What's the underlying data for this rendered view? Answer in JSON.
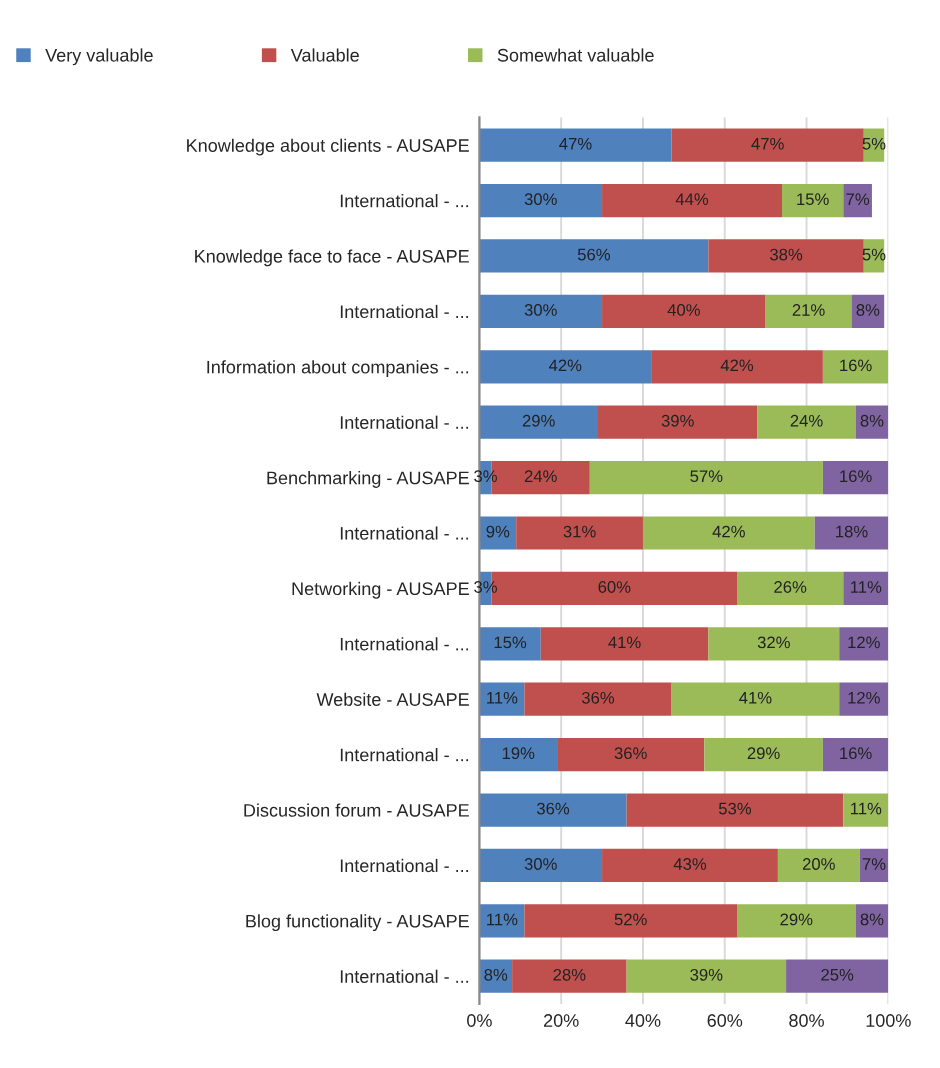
{
  "chart_data": {
    "type": "bar",
    "orientation": "horizontal",
    "stacked": true,
    "legend": "top",
    "grid": "x",
    "categories": [
      "Knowledge about clients - AUSAPE",
      "International - ...",
      "Knowledge face to face - AUSAPE",
      "International - ...",
      "Information about companies - ...",
      "International - ...",
      "Benchmarking - AUSAPE",
      "International - ...",
      "Networking - AUSAPE",
      "International - ...",
      "Website - AUSAPE",
      "International - ...",
      "Discussion forum - AUSAPE",
      "International - ...",
      "Blog functionality - AUSAPE",
      "International - ..."
    ],
    "series": [
      {
        "name": "Very valuable",
        "color": "#4f81bd",
        "values": [
          47,
          30,
          56,
          30,
          42,
          29,
          3,
          9,
          3,
          15,
          11,
          19,
          36,
          30,
          11,
          8
        ],
        "value_labels": [
          "47%",
          "30%",
          "56%",
          "30%",
          "42%",
          "29%",
          "3%",
          "9%",
          "3%",
          "15%",
          "11%",
          "19%",
          "36%",
          "30%",
          "11%",
          "8%"
        ]
      },
      {
        "name": "Valuable",
        "color": "#c0504d",
        "values": [
          47,
          44,
          38,
          40,
          42,
          39,
          24,
          31,
          60,
          41,
          36,
          36,
          53,
          43,
          52,
          28
        ],
        "value_labels": [
          "47%",
          "44%",
          "38%",
          "40%",
          "42%",
          "39%",
          "24%",
          "31%",
          "60%",
          "41%",
          "36%",
          "36%",
          "53%",
          "43%",
          "52%",
          "28%"
        ]
      },
      {
        "name": "Somewhat valuable",
        "color": "#9bbb59",
        "values": [
          5,
          15,
          5,
          21,
          16,
          24,
          57,
          42,
          26,
          32,
          41,
          29,
          11,
          20,
          29,
          39
        ],
        "value_labels": [
          "5%",
          "15%",
          "5%",
          "21%",
          "16%",
          "24%",
          "57%",
          "42%",
          "26%",
          "32%",
          "41%",
          "29%",
          "11%",
          "20%",
          "29%",
          "39%"
        ]
      },
      {
        "color": "#8064a2",
        "values": [
          null,
          7,
          null,
          8,
          null,
          8,
          16,
          18,
          11,
          12,
          12,
          16,
          null,
          7,
          8,
          25
        ],
        "value_labels": [
          null,
          "7%",
          null,
          "8%",
          null,
          "8%",
          "16%",
          "18%",
          "11%",
          "12%",
          "12%",
          "16%",
          null,
          "7%",
          "8%",
          "25%"
        ]
      }
    ],
    "xlim": [
      0,
      100
    ],
    "xticks": [
      {
        "value": 0,
        "label": "0%"
      },
      {
        "value": 20,
        "label": "20%"
      },
      {
        "value": 40,
        "label": "40%"
      },
      {
        "value": 60,
        "label": "60%"
      },
      {
        "value": 80,
        "label": "80%"
      },
      {
        "value": 100,
        "label": "100%"
      }
    ]
  }
}
